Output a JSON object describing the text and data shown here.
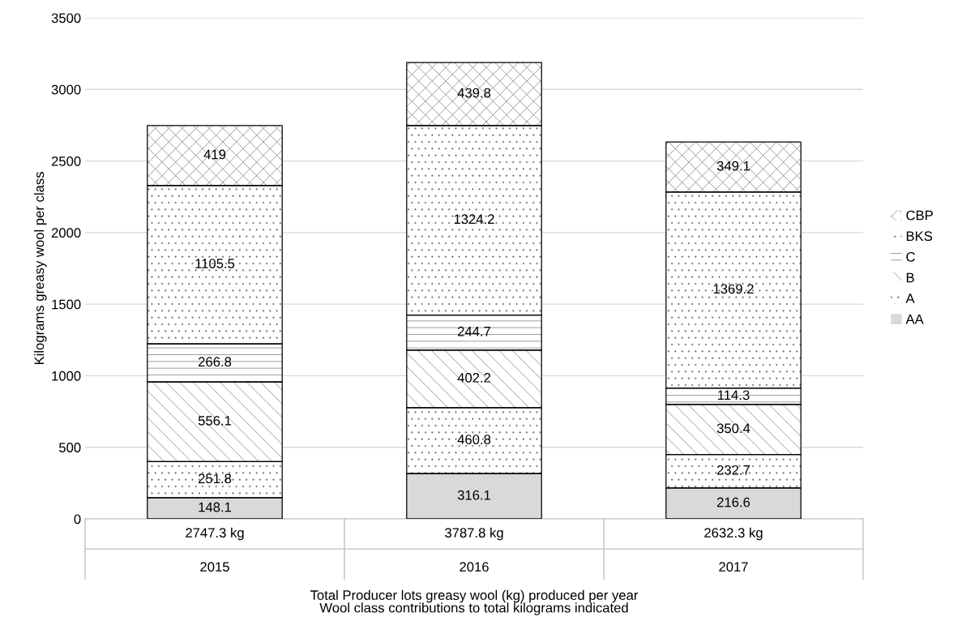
{
  "chart_data": {
    "type": "bar",
    "stacked": true,
    "ylabel": "Kilograms greasy wool per class",
    "xlabel": "Total Producer lots greasy wool (kg) produced per year\nWool class contributions to total kilograms indicated",
    "categories": [
      "2015",
      "2016",
      "2017"
    ],
    "annotations": [
      "2747.3 kg",
      "3787.8 kg",
      "2632.3 kg"
    ],
    "series": [
      {
        "name": "AA",
        "color": "#d9d9d9",
        "values": [
          148.1,
          316.1,
          216.6
        ]
      },
      {
        "name": "A",
        "color": "#ffffff",
        "values": [
          251.8,
          460.8,
          232.7
        ]
      },
      {
        "name": "B",
        "color": "#ffffff",
        "values": [
          556.1,
          402.2,
          350.4
        ]
      },
      {
        "name": "C",
        "color": "#ffffff",
        "values": [
          266.8,
          244.7,
          114.3
        ]
      },
      {
        "name": "BKS",
        "color": "#ffffff",
        "values": [
          1105.5,
          1324.2,
          1369.2
        ]
      },
      {
        "name": "CBP",
        "color": "#ffffff",
        "values": [
          419,
          439.8,
          349.1
        ]
      }
    ],
    "ylim": [
      0,
      3500
    ],
    "yticks": [
      0,
      500,
      1000,
      1500,
      2000,
      2500,
      3000,
      3500
    ],
    "grid": "y",
    "legend": "right",
    "data_labels": true
  }
}
